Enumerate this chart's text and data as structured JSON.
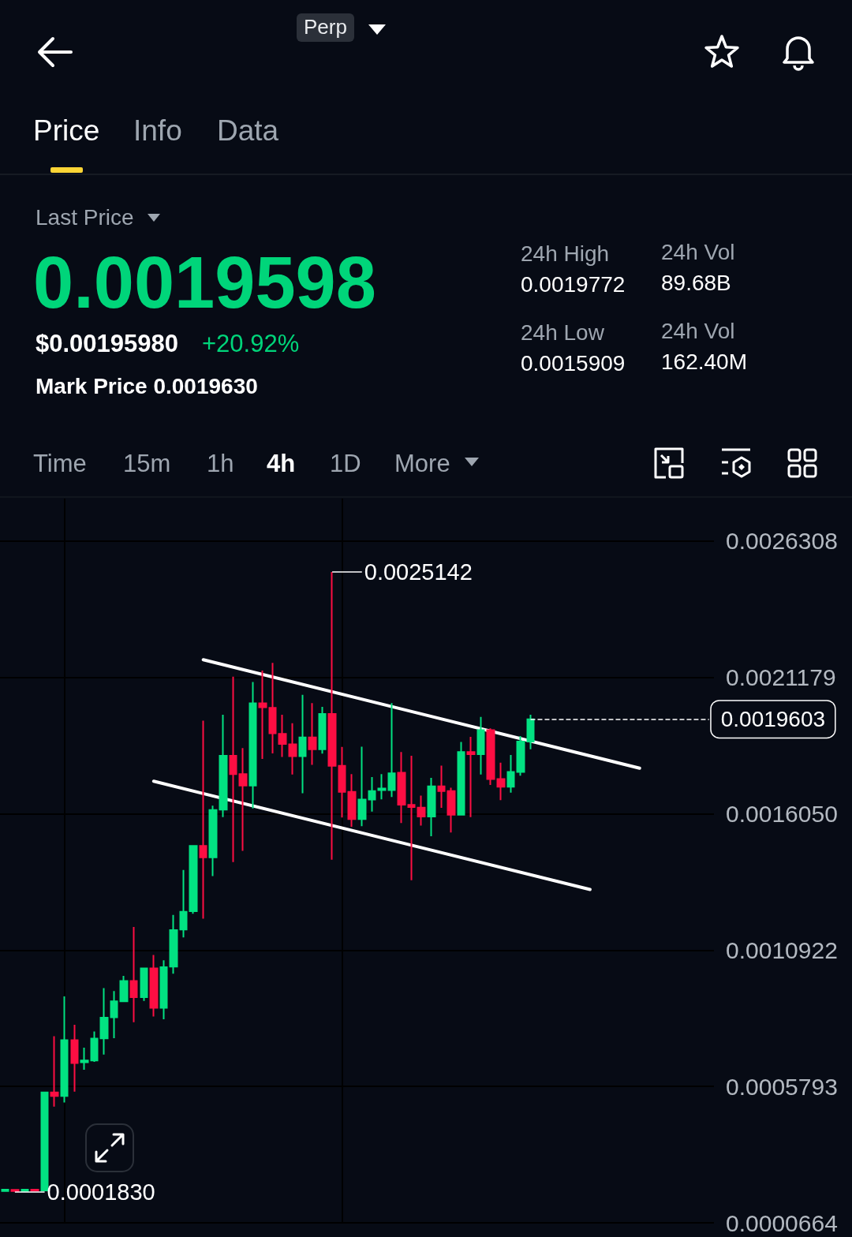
{
  "chart_data": {
    "type": "candlestick",
    "annotations": [
      "Perp",
      "Price",
      "Info",
      "Data",
      "Last Price",
      "0.0019598",
      "$0.00195980",
      "+20.92%",
      "Mark Price 0.0019630",
      "24h High",
      "0.0019772",
      "24h Vol",
      "89.68B",
      "24h Low",
      "0.0015909",
      "24h Vol",
      "162.40M",
      "Time",
      "15m",
      "1h",
      "4h",
      "1D",
      "More",
      "0.0025142",
      "0.0001830"
    ],
    "categories": [
      null,
      null,
      null,
      null,
      null,
      null,
      null,
      null,
      null,
      null,
      null,
      null,
      null,
      null,
      null,
      null,
      null,
      null,
      null,
      null,
      null,
      null,
      null,
      null,
      null,
      null,
      null,
      null,
      null,
      null,
      null,
      null,
      null,
      null,
      null,
      null,
      null,
      null,
      null,
      null,
      null,
      null,
      null,
      null,
      null,
      null,
      null,
      null,
      null,
      null,
      null,
      null,
      null,
      null,
      null,
      null,
      null,
      null,
      null,
      null,
      null,
      null,
      null,
      null,
      null,
      null,
      null,
      null,
      null,
      null,
      null,
      null
    ],
    "ohlc": [
      [
        0.000186,
        0.000192,
        0.000185,
        0.000191
      ],
      [
        0.00019,
        0.000191,
        0.000183,
        0.000186
      ],
      [
        0.000186,
        0.000193,
        0.000185,
        0.000191
      ],
      [
        0.000191,
        0.000192,
        0.000185,
        0.000187
      ],
      [
        0.000188,
        0.000558,
        0.000186,
        0.000557
      ],
      [
        0.000557,
        0.000768,
        0.000503,
        0.000543
      ],
      [
        0.000543,
        0.000918,
        0.000519,
        0.000753
      ],
      [
        0.000753,
        0.000811,
        0.00056,
        0.000667
      ],
      [
        0.00067,
        0.000725,
        0.000642,
        0.000677
      ],
      [
        0.000677,
        0.000786,
        0.000672,
        0.000759
      ],
      [
        0.00076,
        0.000949,
        0.000699,
        0.000838
      ],
      [
        0.000839,
        0.000938,
        0.000761,
        0.000899
      ],
      [
        0.000899,
        0.000995,
        0.000897,
        0.000976
      ],
      [
        0.000976,
        0.001179,
        0.000821,
        0.000915
      ],
      [
        0.000915,
        0.001026,
        0.000901,
        0.001023
      ],
      [
        0.001023,
        0.001074,
        0.000842,
        0.000875
      ],
      [
        0.000875,
        0.001054,
        0.000832,
        0.001028
      ],
      [
        0.00103,
        0.001224,
        0.001003,
        0.001167
      ],
      [
        0.001169,
        0.001393,
        0.00114,
        0.001236
      ],
      [
        0.001238,
        0.001487,
        0.001229,
        0.001484
      ],
      [
        0.001484,
        0.001955,
        0.00121,
        0.001441
      ],
      [
        0.001441,
        0.001635,
        0.00137,
        0.001619
      ],
      [
        0.00162,
        0.001977,
        0.001592,
        0.001823
      ],
      [
        0.001823,
        0.00212,
        0.001423,
        0.001754
      ],
      [
        0.001754,
        0.001852,
        0.001465,
        0.001711
      ],
      [
        0.001711,
        0.0021,
        0.001625,
        0.00202
      ],
      [
        0.00202,
        0.002143,
        0.001811,
        0.002005
      ],
      [
        0.002003,
        0.002172,
        0.001832,
        0.001907
      ],
      [
        0.001905,
        0.001977,
        0.001818,
        0.001867
      ],
      [
        0.001866,
        0.001945,
        0.001752,
        0.001821
      ],
      [
        0.001821,
        0.002052,
        0.001682,
        0.001892
      ],
      [
        0.001892,
        0.002021,
        0.001789,
        0.001847
      ],
      [
        0.001847,
        0.002007,
        0.001831,
        0.00198
      ],
      [
        0.00198,
        0.0025142,
        0.001432,
        0.001785
      ],
      [
        0.001785,
        0.001856,
        0.001591,
        0.001687
      ],
      [
        0.001687,
        0.001754,
        0.001556,
        0.001585
      ],
      [
        0.001585,
        0.001857,
        0.001558,
        0.001658
      ],
      [
        0.001658,
        0.001743,
        0.001613,
        0.00169
      ],
      [
        0.001694,
        0.001754,
        0.001659,
        0.0017
      ],
      [
        0.001694,
        0.002021,
        0.001668,
        0.001757
      ],
      [
        0.001759,
        0.001837,
        0.00157,
        0.001639
      ],
      [
        0.001638,
        0.001823,
        0.001355,
        0.00163
      ],
      [
        0.001628,
        0.001673,
        0.00156,
        0.001594
      ],
      [
        0.001594,
        0.00174,
        0.00152,
        0.001708
      ],
      [
        0.001708,
        0.001786,
        0.001627,
        0.00169
      ],
      [
        0.00169,
        0.001703,
        0.001534,
        0.001601
      ],
      [
        0.001601,
        0.001875,
        0.001599,
        0.001837
      ],
      [
        0.001837,
        0.001894,
        0.001592,
        0.001829
      ],
      [
        0.001829,
        0.001969,
        0.001752,
        0.001919
      ],
      [
        0.001919,
        0.001926,
        0.001713,
        0.001735
      ],
      [
        0.001735,
        0.001797,
        0.001656,
        0.001706
      ],
      [
        0.001706,
        0.001826,
        0.001684,
        0.001762
      ],
      [
        0.001762,
        0.001897,
        0.001748,
        0.001876
      ],
      [
        0.001876,
        0.0019772,
        0.001847,
        0.0019603
      ],
      null,
      null,
      null,
      null,
      null,
      null,
      null,
      null,
      null,
      null,
      null,
      null,
      null,
      null,
      null,
      null,
      null,
      null
    ],
    "colors": [
      "#02e282",
      "#fd0e43",
      "#02e282",
      "#fd0e43",
      "#02e282",
      "#fd0e43",
      "#02e282",
      "#fd0e43",
      "#02e282",
      "#02e282",
      "#02e282",
      "#02e282",
      "#02e282",
      "#fd0e43",
      "#02e282",
      "#fd0e43",
      "#02e282",
      "#02e282",
      "#02e282",
      "#02e282",
      "#fd0e43",
      "#02e282",
      "#02e282",
      "#fd0e43",
      "#fd0e43",
      "#02e282",
      "#fd0e43",
      "#fd0e43",
      "#fd0e43",
      "#fd0e43",
      "#02e282",
      "#fd0e43",
      "#02e282",
      "#fd0e43",
      "#fd0e43",
      "#fd0e43",
      "#02e282",
      "#02e282",
      "#02e282",
      "#02e282",
      "#fd0e43",
      "#fd0e43",
      "#fd0e43",
      "#02e282",
      "#fd0e43",
      "#fd0e43",
      "#02e282",
      "#fd0e43",
      "#02e282",
      "#fd0e43",
      "#fd0e43",
      "#02e282",
      "#02e282",
      "#02e282",
      null,
      null,
      null,
      null,
      null,
      null,
      null,
      null,
      null,
      null,
      null,
      null,
      null,
      null,
      null,
      null,
      null,
      null
    ],
    "series": [
      {
        "type": "line",
        "color": "#ffffff",
        "values": [
          null,
          null,
          null,
          null,
          null,
          null,
          null,
          null,
          null,
          null,
          null,
          null,
          null,
          null,
          null,
          null,
          null,
          null,
          null,
          null,
          0.002184,
          null,
          null,
          null,
          null,
          null,
          null,
          null,
          null,
          null,
          null,
          null,
          null,
          null,
          null,
          null,
          null,
          null,
          null,
          null,
          null,
          null,
          null,
          null,
          null,
          null,
          null,
          null,
          null,
          null,
          null,
          null,
          null,
          null,
          null,
          null,
          null,
          null,
          null,
          null,
          null,
          null,
          null,
          null,
          0.001776,
          null,
          null,
          null,
          null,
          null,
          null,
          null
        ]
      },
      {
        "type": "line",
        "color": "#ffffff",
        "values": [
          null,
          null,
          null,
          null,
          null,
          null,
          null,
          null,
          null,
          null,
          null,
          null,
          null,
          null,
          null,
          0.001727,
          null,
          null,
          null,
          null,
          null,
          null,
          null,
          null,
          null,
          null,
          null,
          null,
          null,
          null,
          null,
          null,
          null,
          null,
          null,
          null,
          null,
          null,
          null,
          null,
          null,
          null,
          null,
          null,
          null,
          null,
          null,
          null,
          null,
          null,
          null,
          null,
          null,
          null,
          null,
          null,
          null,
          null,
          null,
          0.00132,
          null,
          null,
          null,
          null,
          null,
          null,
          null,
          null,
          null,
          null,
          null,
          null
        ]
      }
    ],
    "ylim": [
      6.64e-05,
      0.00279
    ],
    "yticks": [
      {
        "value": 6.64e-05,
        "label": "0.0000664"
      },
      0.0005793,
      0.0010922,
      {
        "value": 0.001605,
        "label": "0.0016050"
      },
      0.0021179,
      0.0026308
    ],
    "ref_lines": [
      {
        "axis": "y",
        "value": 0.0019603,
        "label": "0.0019603",
        "color": "#ffffff",
        "line_style": "dashed"
      }
    ],
    "grid": true,
    "tick_labels": "y"
  }
}
